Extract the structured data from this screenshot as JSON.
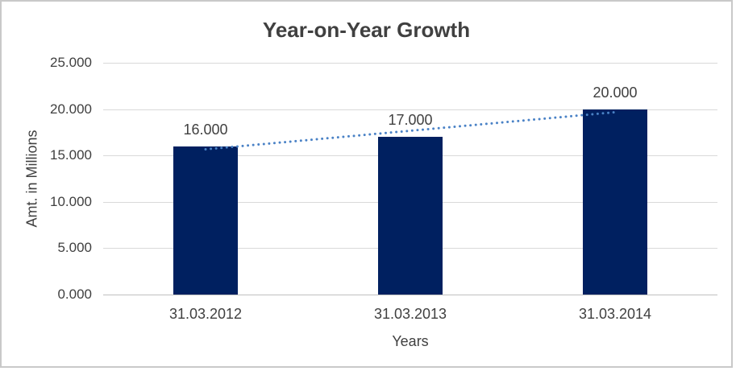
{
  "chart_data": {
    "type": "bar",
    "title": "Year-on-Year Growth",
    "xlabel": "Years",
    "ylabel": "Amt. in Millions",
    "categories": [
      "31.03.2012",
      "31.03.2013",
      "31.03.2014"
    ],
    "values": [
      16,
      17,
      20
    ],
    "bar_value_labels": [
      "16.000",
      "17.000",
      "20.000"
    ],
    "ylim": [
      0,
      25
    ],
    "ytick_values": [
      0,
      5,
      10,
      15,
      20,
      25
    ],
    "ytick_labels": [
      "0.000",
      "5.000",
      "10.000",
      "15.000",
      "20.000",
      "25.000"
    ],
    "grid": true,
    "legend": "none",
    "trendline": {
      "style": "dotted",
      "start_value": 15.667,
      "end_value": 19.667
    },
    "colors": {
      "bar": "#002060",
      "trendline": "#4a82c6",
      "gridline": "#d9d9d9",
      "axis_line": "#bfbfbf",
      "text": "#404040",
      "frame_border": "#c9c9c9",
      "background": "#ffffff"
    }
  }
}
